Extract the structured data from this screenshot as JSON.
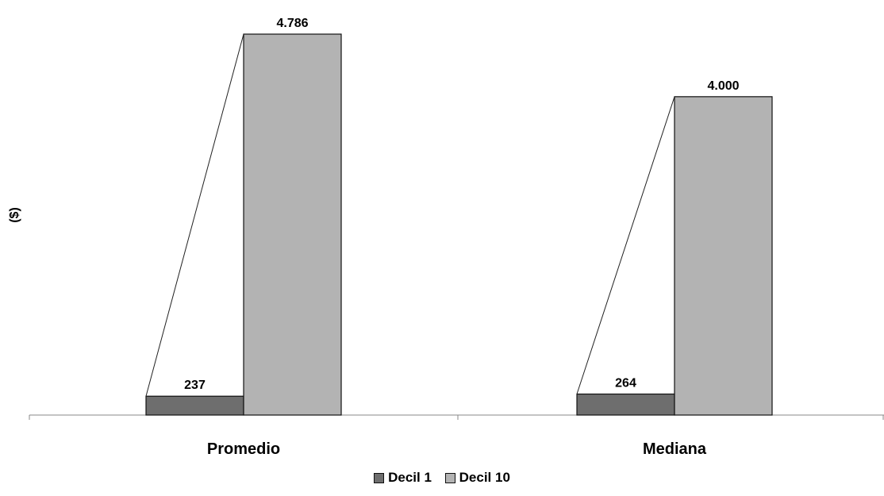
{
  "chart_data": {
    "type": "bar",
    "ylabel": "($)",
    "categories": [
      "Promedio",
      "Mediana"
    ],
    "series": [
      {
        "name": "Decil 1",
        "values": [
          237,
          264
        ],
        "labels": [
          "237",
          "264"
        ],
        "color": "#6e6e6e"
      },
      {
        "name": "Decil 10",
        "values": [
          4786,
          4000
        ],
        "labels": [
          "4.786",
          "4.000"
        ],
        "color": "#b3b3b3"
      }
    ],
    "ylim": [
      0,
      4786
    ],
    "grid": false,
    "legend_position": "bottom",
    "connector_lines": true
  }
}
